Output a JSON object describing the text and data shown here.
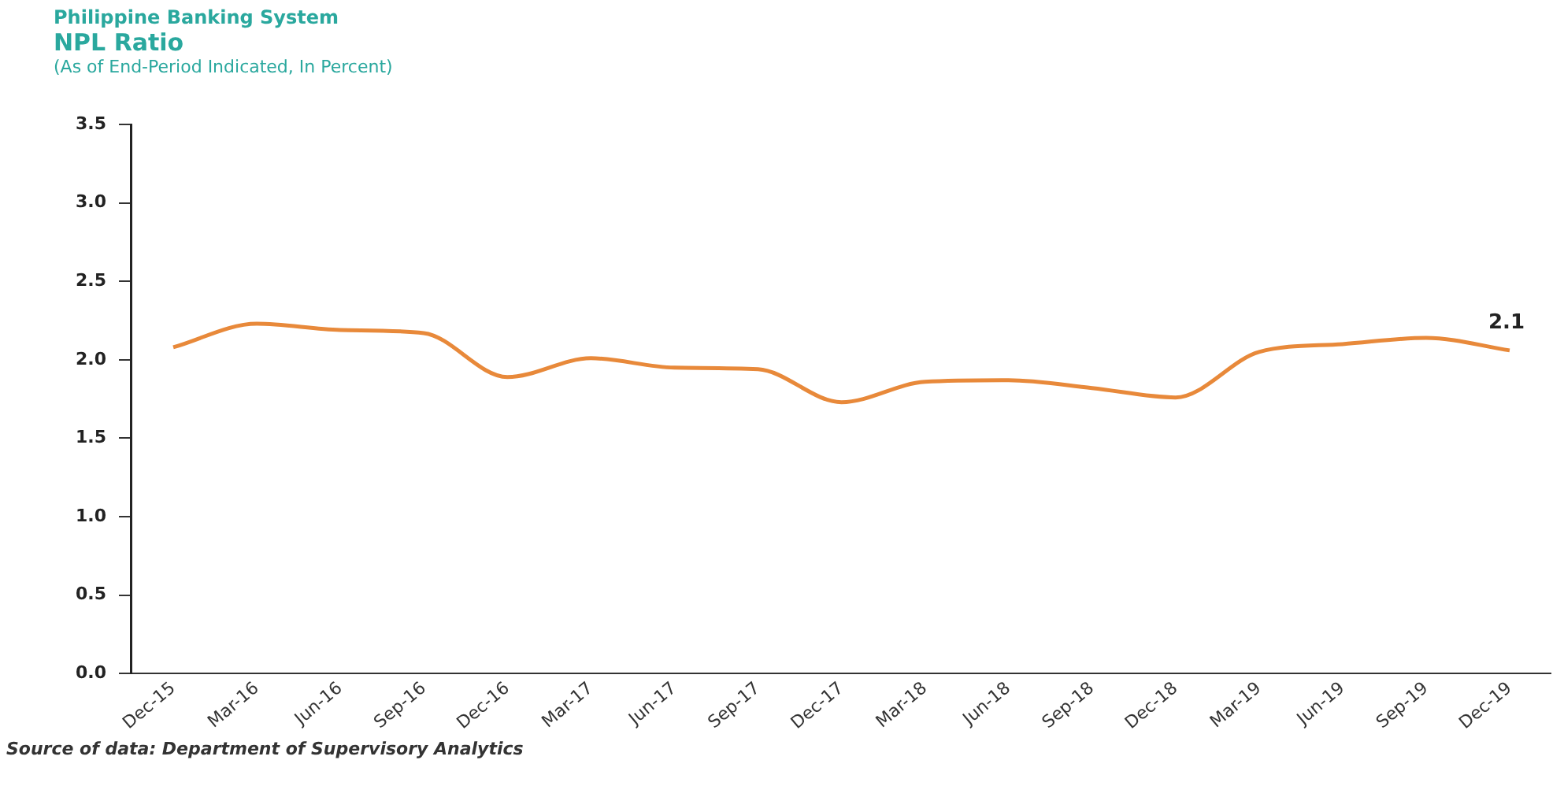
{
  "chart_data": {
    "type": "line",
    "title": "NPL Ratio",
    "subtitle": "(As of End-Period Indicated, In Percent)",
    "annotations": [
      "Philippine Banking System",
      "Source of data: Department of Supervisory Analytics"
    ],
    "categories": [
      "Dec-15",
      "Mar-16",
      "Jun-16",
      "Sep-16",
      "Dec-16",
      "Mar-17",
      "Jun-17",
      "Sep-17",
      "Dec-17",
      "Mar-18",
      "Jun-18",
      "Sep-18",
      "Dec-18",
      "Mar-19",
      "Jun-19",
      "Sep-19",
      "Dec-19"
    ],
    "series": [
      {
        "color": "#e8893a",
        "values": [
          2.08,
          2.23,
          2.19,
          2.17,
          1.89,
          2.01,
          1.95,
          1.94,
          1.73,
          1.86,
          1.87,
          1.82,
          1.76,
          2.05,
          2.1,
          2.14,
          2.06
        ],
        "value_labels": [
          null,
          null,
          null,
          null,
          null,
          null,
          null,
          null,
          null,
          null,
          null,
          null,
          null,
          null,
          null,
          null,
          "2.1"
        ]
      }
    ],
    "ylim": [
      0,
      3.5
    ],
    "yticks": [
      {
        "value": 0,
        "label": "0.0"
      },
      0.5,
      {
        "value": 1,
        "label": "1.0"
      },
      1.5,
      {
        "value": 2,
        "label": "2.0"
      },
      2.5,
      {
        "value": 3,
        "label": "3.0"
      },
      3.5
    ],
    "grid": false,
    "legend": false,
    "marker": "none",
    "line_style": "solid"
  }
}
